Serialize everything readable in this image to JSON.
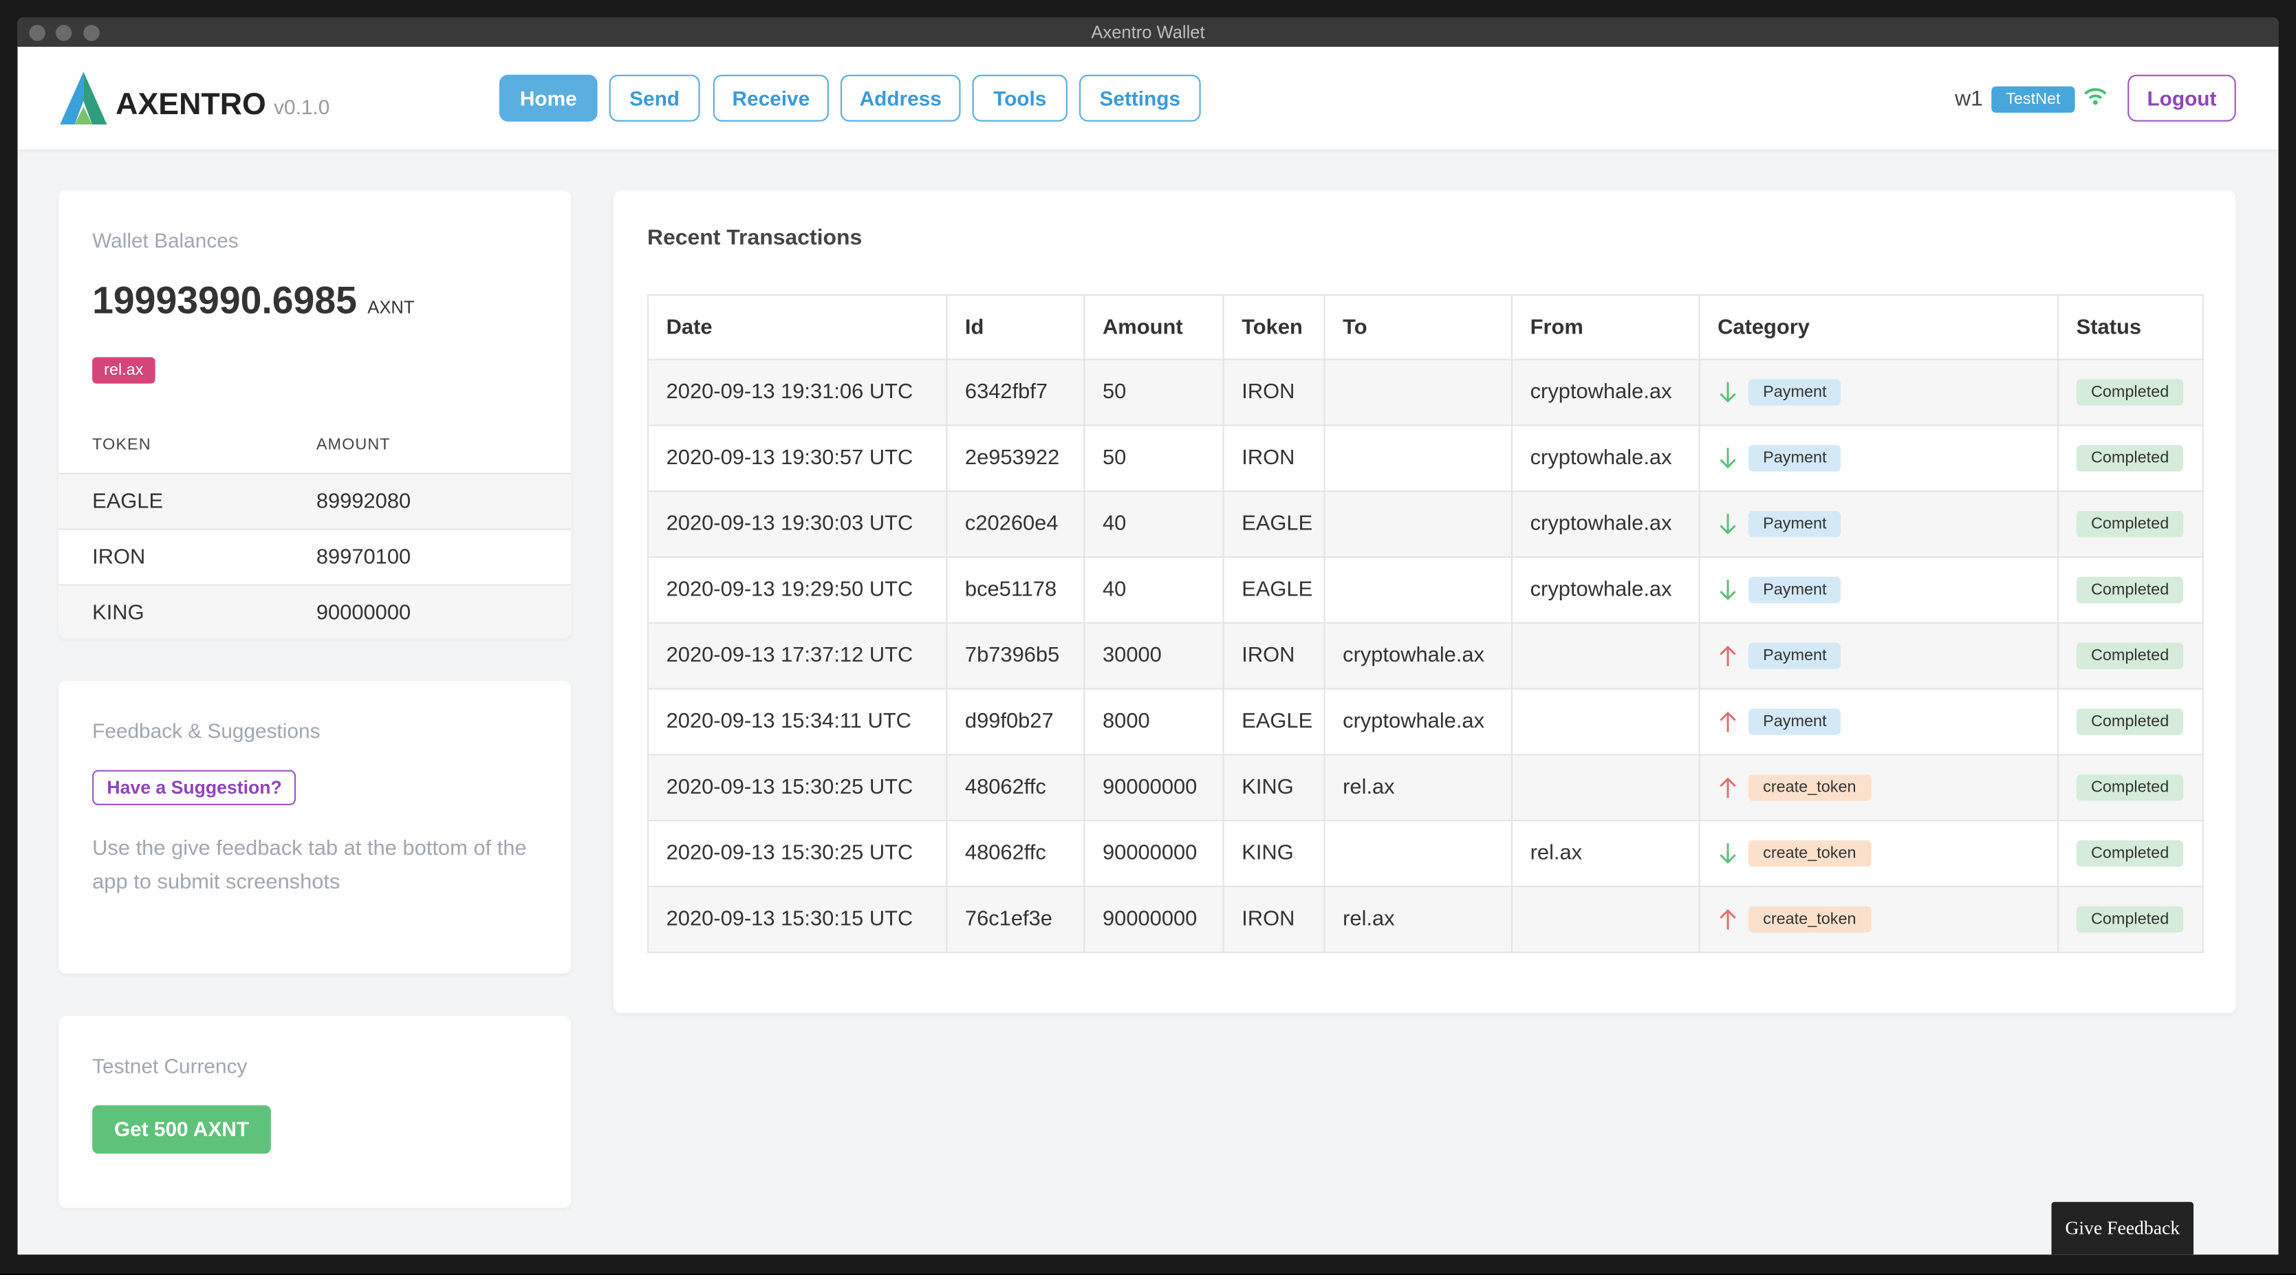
{
  "window_title": "Axentro Wallet",
  "header": {
    "brand": "AXENTRO",
    "version": "v0.1.0",
    "nav": [
      "Home",
      "Send",
      "Receive",
      "Address",
      "Tools",
      "Settings"
    ],
    "wallet": "w1",
    "network": "TestNet",
    "logout": "Logout"
  },
  "balances": {
    "title": "Wallet Balances",
    "total": "19993990.6985",
    "unit": "AXNT",
    "address": "rel.ax",
    "columns": [
      "TOKEN",
      "AMOUNT"
    ],
    "rows": [
      [
        "EAGLE",
        "89992080"
      ],
      [
        "IRON",
        "89970100"
      ],
      [
        "KING",
        "90000000"
      ]
    ]
  },
  "feedback": {
    "title": "Feedback & Suggestions",
    "button": "Have a Suggestion?",
    "text": "Use the give feedback tab at the bottom of the app to submit screenshots"
  },
  "testnet": {
    "title": "Testnet Currency",
    "button": "Get 500 AXNT"
  },
  "transactions": {
    "title": "Recent Transactions",
    "columns": [
      "Date",
      "Id",
      "Amount",
      "Token",
      "To",
      "From",
      "Category",
      "Status"
    ],
    "category_colors": {
      "Payment": "#d3e9f7",
      "create_token": "#fbe1cb"
    },
    "rows": [
      [
        "2020-09-13 19:31:06 UTC",
        "6342fbf7",
        "50",
        "IRON",
        null,
        "cryptowhale.ax",
        "Payment",
        "Completed"
      ],
      [
        "2020-09-13 19:30:57 UTC",
        "2e953922",
        "50",
        "IRON",
        null,
        "cryptowhale.ax",
        "Payment",
        "Completed"
      ],
      [
        "2020-09-13 19:30:03 UTC",
        "c20260e4",
        "40",
        "EAGLE",
        null,
        "cryptowhale.ax",
        "Payment",
        "Completed"
      ],
      [
        "2020-09-13 19:29:50 UTC",
        "bce51178",
        "40",
        "EAGLE",
        null,
        "cryptowhale.ax",
        "Payment",
        "Completed"
      ],
      [
        "2020-09-13 17:37:12 UTC",
        "7b7396b5",
        "30000",
        "IRON",
        "cryptowhale.ax",
        null,
        "Payment",
        "Completed"
      ],
      [
        "2020-09-13 15:34:11 UTC",
        "d99f0b27",
        "8000",
        "EAGLE",
        "cryptowhale.ax",
        null,
        "Payment",
        "Completed"
      ],
      [
        "2020-09-13 15:30:25 UTC",
        "48062ffc",
        "90000000",
        "KING",
        "rel.ax",
        null,
        "create_token",
        "Completed"
      ],
      [
        "2020-09-13 15:30:25 UTC",
        "48062ffc",
        "90000000",
        "KING",
        null,
        "rel.ax",
        "create_token",
        "Completed"
      ],
      [
        "2020-09-13 15:30:15 UTC",
        "76c1ef3e",
        "90000000",
        "IRON",
        "rel.ax",
        null,
        "create_token",
        "Completed"
      ]
    ]
  },
  "give_feedback": "Give Feedback"
}
